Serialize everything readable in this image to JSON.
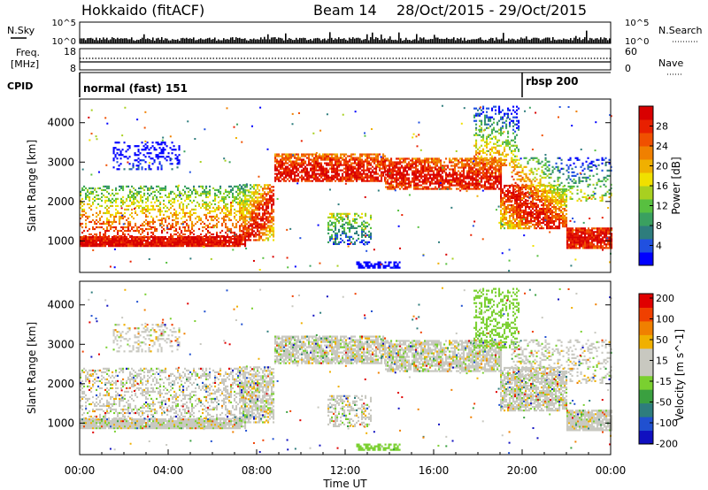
{
  "header": {
    "station": "Hokkaido (fitACF)",
    "beam": "Beam 14",
    "date_range": "28/Oct/2015 - 29/Oct/2015"
  },
  "top_panels": {
    "nsky_label": "N.Sky",
    "nsky_ticks": [
      "10^5",
      "10^0"
    ],
    "nsearch_label": "N.Search",
    "nsearch_ticks": [
      "10^5",
      "10^0"
    ],
    "freq_label_1": "Freq.",
    "freq_label_2": "[MHz]",
    "freq_ticks": [
      "18",
      "8"
    ],
    "nave_label": "Nave",
    "nave_ticks": [
      "60",
      "0"
    ],
    "cpid_label": "CPID",
    "cpid_modes": [
      {
        "name": "normal (fast) 151",
        "start_hour": 0
      },
      {
        "name": "rbsp 200",
        "start_hour": 20.0
      }
    ]
  },
  "chart_data": [
    {
      "type": "heatmap",
      "parameter": "power",
      "ylabel": "Slant Range [km]",
      "yticks": [
        "1000",
        "2000",
        "3000",
        "4000"
      ],
      "ylim": [
        200,
        4600
      ],
      "xlim": [
        0,
        24
      ],
      "colorbar": {
        "label": "Power [dB]",
        "ticks": [
          "4",
          "8",
          "12",
          "16",
          "20",
          "24",
          "28"
        ],
        "range": [
          0,
          32
        ],
        "colors": [
          "#0000ff",
          "#2050e0",
          "#2e7d7d",
          "#3aa060",
          "#58c040",
          "#a8d020",
          "#f0e000",
          "#f0b000",
          "#f08000",
          "#f05000",
          "#e82000",
          "#d80000"
        ]
      }
    },
    {
      "type": "heatmap",
      "parameter": "velocity",
      "ylabel": "Slant Range [km]",
      "yticks": [
        "1000",
        "2000",
        "3000",
        "4000"
      ],
      "ylim": [
        200,
        4600
      ],
      "xlim": [
        0,
        24
      ],
      "xticks": [
        "00:00",
        "04:00",
        "08:00",
        "12:00",
        "16:00",
        "20:00",
        "00:00"
      ],
      "xlabel": "Time UT",
      "colorbar": {
        "label": "Velocity [m s^-1]",
        "ticks": [
          "200",
          "100",
          "50",
          "15",
          "-15",
          "-50",
          "-100",
          "-200"
        ],
        "colors": [
          "#1010c0",
          "#2050d0",
          "#2e7d7d",
          "#3aa040",
          "#7ad030",
          "#c8c8c0",
          "#c8c8c0",
          "#f0b000",
          "#f08000",
          "#f04000",
          "#e00000"
        ]
      }
    }
  ]
}
